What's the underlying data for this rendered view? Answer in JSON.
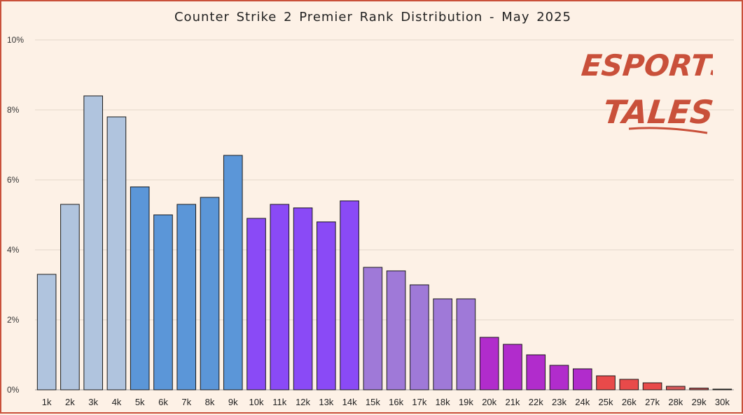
{
  "chart_data": {
    "type": "bar",
    "title": "Counter Strike 2 Premier Rank Distribution  - May 2025",
    "xlabel": "",
    "ylabel": "",
    "ylim": [
      0,
      10
    ],
    "y_ticks": [
      "0%",
      "2%",
      "4%",
      "6%",
      "8%",
      "10%"
    ],
    "y_tick_values": [
      0,
      2,
      4,
      6,
      8,
      10
    ],
    "grid": true,
    "categories": [
      "1k",
      "2k",
      "3k",
      "4k",
      "5k",
      "6k",
      "7k",
      "8k",
      "9k",
      "10k",
      "11k",
      "12k",
      "13k",
      "14k",
      "15k",
      "16k",
      "17k",
      "18k",
      "19k",
      "20k",
      "21k",
      "22k",
      "23k",
      "24k",
      "25k",
      "26k",
      "27k",
      "28k",
      "29k",
      "30k"
    ],
    "values": [
      3.3,
      5.3,
      8.4,
      7.8,
      5.8,
      5.0,
      5.3,
      5.5,
      6.7,
      4.9,
      5.3,
      5.2,
      4.8,
      5.4,
      3.5,
      3.4,
      3.0,
      2.6,
      2.6,
      1.5,
      1.3,
      1.0,
      0.7,
      0.6,
      0.4,
      0.3,
      0.2,
      0.1,
      0.05,
      0.02
    ],
    "colors": [
      "#b0c4de",
      "#b0c4de",
      "#b0c4de",
      "#b0c4de",
      "#5b96d8",
      "#5b96d8",
      "#5b96d8",
      "#5b96d8",
      "#5b96d8",
      "#8a4af6",
      "#8a4af6",
      "#8a4af6",
      "#8a4af6",
      "#8a4af6",
      "#9f79d8",
      "#9f79d8",
      "#9f79d8",
      "#9f79d8",
      "#9f79d8",
      "#b12ccc",
      "#b12ccc",
      "#b12ccc",
      "#b12ccc",
      "#b12ccc",
      "#e84a4a",
      "#e84a4a",
      "#e84a4a",
      "#d65858",
      "#c65a5a",
      "#a63838"
    ]
  },
  "logo": {
    "line1": "ESPORTS",
    "line2": "TALES",
    "color": "#c9503a"
  }
}
